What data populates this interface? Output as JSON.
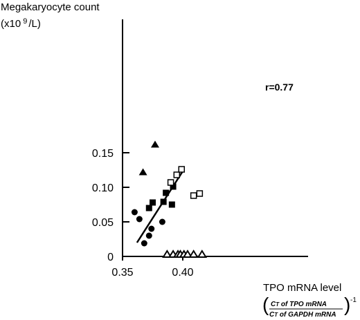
{
  "chart_data": {
    "type": "scatter",
    "title": "",
    "ylabel_line1": "Megakaryocyte count",
    "ylabel_line2_prefix": "(x10",
    "ylabel_line2_exp": "9",
    "ylabel_line2_suffix": "/L)",
    "xlabel": "TPO mRNA level",
    "xlabel_formula": {
      "numerator_ct": "C",
      "numerator_sub": "T",
      "numerator_rest": " of TPO mRNA",
      "denominator_ct": "C",
      "denominator_sub": "T",
      "denominator_rest": " of GAPDH mRNA",
      "exponent": "-1"
    },
    "annotation": "r=0.77",
    "xlim": [
      0.35,
      0.43
    ],
    "ylim": [
      0,
      0.17
    ],
    "x_ticks": [
      {
        "value": 0.35,
        "label": "0.35"
      },
      {
        "value": 0.4,
        "label": "0.40"
      }
    ],
    "y_ticks": [
      {
        "value": 0,
        "label": "0"
      },
      {
        "value": 0.05,
        "label": "0.05"
      },
      {
        "value": 0.1,
        "label": "0.10"
      },
      {
        "value": 0.15,
        "label": "0.15"
      }
    ],
    "grid": false,
    "series": [
      {
        "marker": "filled-triangle",
        "points": [
          [
            0.367,
            0.122
          ],
          [
            0.377,
            0.162
          ]
        ]
      },
      {
        "marker": "filled-circle",
        "points": [
          [
            0.36,
            0.064
          ],
          [
            0.364,
            0.054
          ],
          [
            0.368,
            0.019
          ],
          [
            0.372,
            0.03
          ],
          [
            0.374,
            0.04
          ],
          [
            0.383,
            0.05
          ]
        ]
      },
      {
        "marker": "filled-square",
        "points": [
          [
            0.372,
            0.07
          ],
          [
            0.375,
            0.078
          ],
          [
            0.384,
            0.079
          ],
          [
            0.386,
            0.092
          ],
          [
            0.391,
            0.075
          ],
          [
            0.392,
            0.101
          ]
        ]
      },
      {
        "marker": "open-square",
        "points": [
          [
            0.39,
            0.107
          ],
          [
            0.395,
            0.118
          ],
          [
            0.399,
            0.126
          ],
          [
            0.409,
            0.088
          ],
          [
            0.414,
            0.091
          ]
        ]
      },
      {
        "marker": "open-triangle",
        "points": [
          [
            0.387,
            0.002
          ],
          [
            0.392,
            0.002
          ],
          [
            0.396,
            0.002
          ],
          [
            0.398,
            0.002
          ],
          [
            0.401,
            0.002
          ],
          [
            0.404,
            0.002
          ],
          [
            0.409,
            0.002
          ],
          [
            0.416,
            0.002
          ]
        ]
      }
    ],
    "regression_line": {
      "x": [
        0.362,
        0.401
      ],
      "y": [
        0.02,
        0.126
      ]
    }
  }
}
